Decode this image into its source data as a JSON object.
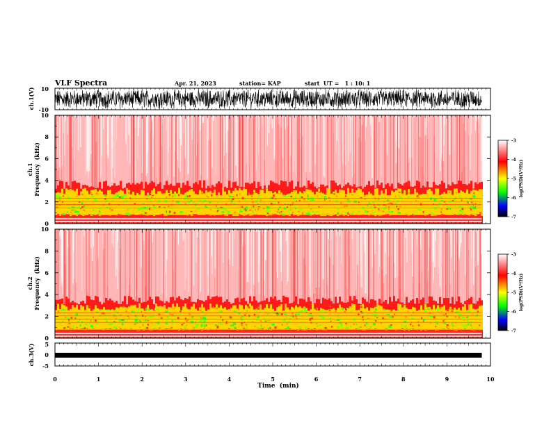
{
  "header": {
    "title": "VLF Spectra",
    "date": "Apr. 21, 2023",
    "station": "station= KAP",
    "start": "start  UT =   1 : 10: 1"
  },
  "chart_data": [
    {
      "type": "line",
      "panel": "ch1-waveform",
      "ylabel": "ch.1(V)",
      "ylim": [
        -10,
        10
      ],
      "yticks": [
        "10",
        "-10"
      ],
      "xlim": [
        0,
        10
      ],
      "trace": "dense black waveform, about ±7 V, from 0 to 9.8 min"
    },
    {
      "type": "heatmap",
      "panel": "ch1-spectrogram",
      "ylabel": "ch.1",
      "ylabel2": "Frequency  (kHz)",
      "ylim": [
        0,
        10
      ],
      "yticks": [
        "0",
        "2",
        "4",
        "6",
        "8",
        "10"
      ],
      "xlim": [
        0,
        10
      ],
      "data_end_min": 9.8,
      "band_top_khz": 3.0,
      "colorbar": {
        "label": "log(PSD)(V²/Hz)",
        "range": [
          -7,
          -3
        ],
        "ticks": [
          "-3",
          "-4",
          "-5",
          "-6",
          "-7"
        ],
        "colors": [
          "#ffffff",
          "#ff0000",
          "#ffff00",
          "#00ff00",
          "#0000ff",
          "#000000"
        ]
      }
    },
    {
      "type": "heatmap",
      "panel": "ch2-spectrogram",
      "ylabel": "ch.2",
      "ylabel2": "Frequency  (kHz)",
      "ylim": [
        0,
        10
      ],
      "yticks": [
        "0",
        "2",
        "4",
        "6",
        "8",
        "10"
      ],
      "xlim": [
        0,
        10
      ],
      "data_end_min": 9.8,
      "band_top_khz": 2.9,
      "colorbar": {
        "label": "log(PSD)(V²/Hz)",
        "range": [
          -7,
          -3
        ],
        "ticks": [
          "-3",
          "-4",
          "-5",
          "-6",
          "-7"
        ],
        "colors": [
          "#ffffff",
          "#ff0000",
          "#ffff00",
          "#00ff00",
          "#0000ff",
          "#000000"
        ]
      }
    },
    {
      "type": "line",
      "panel": "ch3-waveform",
      "ylabel": "ch.3(V)",
      "ylim": [
        -5,
        5
      ],
      "yticks": [
        "5",
        "0",
        "-5"
      ],
      "xlim": [
        0,
        10
      ],
      "level_v": 0,
      "xlabel": "Time  (min)",
      "xticks": [
        "0",
        "1",
        "2",
        "3",
        "4",
        "5",
        "6",
        "7",
        "8",
        "9",
        "10"
      ]
    }
  ]
}
